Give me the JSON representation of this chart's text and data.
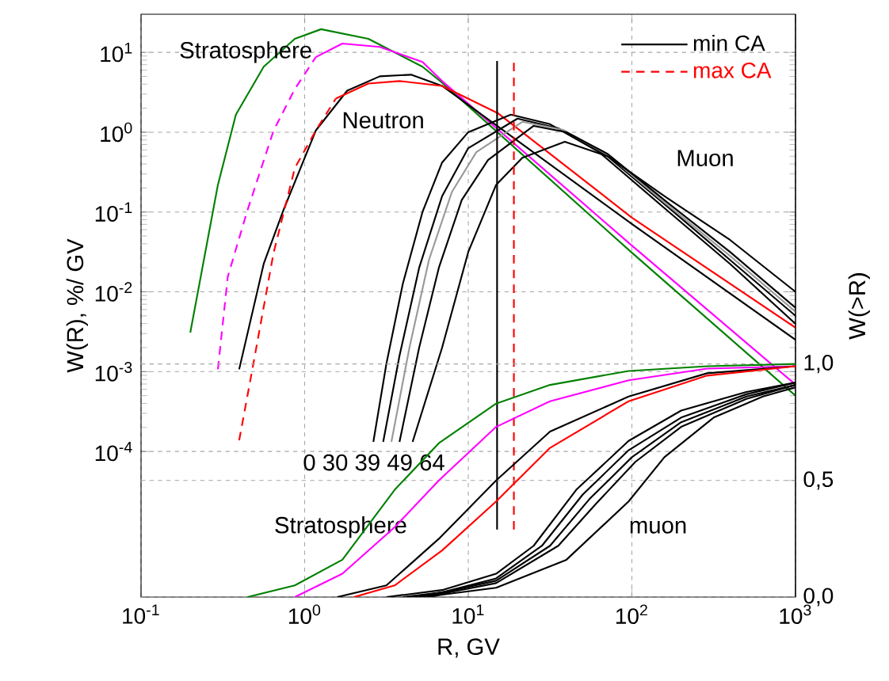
{
  "chart_data": {
    "type": "line",
    "xlabel": "R, GV",
    "ylabel": "W(R), %/ GV",
    "y2label": "W(>R)",
    "log": "xy",
    "xlim": [
      0.1,
      1000
    ],
    "ylim": [
      1.5e-06,
      30
    ],
    "y2lim": [
      0,
      2.5
    ],
    "xticks": [
      {
        "value": 0.1,
        "label": "10$^{-1}$"
      },
      {
        "value": 1,
        "label": "10$^{0}$"
      },
      {
        "value": 10,
        "label": "10$^{1}$"
      },
      {
        "value": 100,
        "label": "10$^{2}$"
      },
      {
        "value": 1000,
        "label": "10$^{3}$"
      }
    ],
    "yticks": [
      {
        "value": 0.0001,
        "label": "10$^{-4}$"
      },
      {
        "value": 0.001,
        "label": "10$^{-3}$"
      },
      {
        "value": 0.01,
        "label": "10$^{-2}$"
      },
      {
        "value": 0.1,
        "label": "10$^{-1}$"
      },
      {
        "value": 1,
        "label": "10$^{0}$"
      },
      {
        "value": 10,
        "label": "10$^{1}$"
      }
    ],
    "y2ticks": [
      {
        "value": 0,
        "label": "0,0"
      },
      {
        "value": 0.5,
        "label": "0,5"
      },
      {
        "value": 1,
        "label": "1,0"
      }
    ],
    "grid": true,
    "legend": "top right",
    "series": [
      {
        "color": "#008000",
        "line_style": "solid",
        "x": [
          0.2,
          0.295,
          0.38,
          0.562,
          0.871,
          1.26,
          2.45,
          5.25,
          6.92,
          100,
          1000
        ],
        "values": [
          0.00309,
          0.219,
          1.66,
          6.61,
          14.8,
          19.5,
          14.8,
          6.61,
          4.17,
          0.0309,
          0.0005
        ]
      },
      {
        "color": "#ff00ff",
        "line_style": "dashed",
        "x": [
          0.295,
          0.339,
          0.447,
          0.646,
          0.871,
          1.17
        ],
        "values": [
          0.00107,
          0.0155,
          0.105,
          1.05,
          3.47,
          8.71
        ]
      },
      {
        "color": "#ff00ff",
        "line_style": "solid",
        "x": [
          1.17,
          1.7,
          2.88,
          5.25,
          6.92,
          100,
          1000
        ],
        "values": [
          8.71,
          12.9,
          11.7,
          7.59,
          4.37,
          0.038,
          0.00069
        ]
      },
      {
        "name": "min CA",
        "color": "#000000",
        "line_style": "solid",
        "x": [
          0.398,
          0.562,
          0.741,
          1.17,
          1.82,
          2.88,
          4.47,
          6.92,
          100,
          1000
        ],
        "values": [
          0.00107,
          0.0224,
          0.105,
          1.05,
          3.31,
          5.01,
          5.25,
          3.8,
          0.0708,
          0.00251
        ]
      },
      {
        "name": "max CA",
        "color": "#ff0000",
        "line_style": "dashed",
        "x": [
          0.398,
          0.479,
          0.646,
          0.871,
          1.17,
          1.55
        ],
        "values": [
          0.000138,
          0.00107,
          0.0309,
          0.355,
          1.05,
          2.63
        ]
      },
      {
        "color": "#ff0000",
        "line_style": "solid",
        "x": [
          1.55,
          2.45,
          3.8,
          6.92,
          15.1,
          100,
          1000
        ],
        "values": [
          2.63,
          4.07,
          4.37,
          3.8,
          1.74,
          0.0851,
          0.00355
        ]
      },
      {
        "color": "#000000",
        "line_style": "solid",
        "x": [
          2.63,
          3.16,
          3.98,
          5.25,
          6.92,
          10,
          18.2,
          31.6,
          63.1,
          158,
          398,
          1000
        ],
        "values": [
          0.000132,
          0.00126,
          0.0126,
          0.1,
          0.417,
          1,
          1.66,
          1.26,
          0.562,
          0.112,
          0.0224,
          0.00398
        ]
      },
      {
        "color": "#000000",
        "line_style": "solid",
        "x": [
          3.02,
          3.8,
          5.01,
          6.92,
          10,
          20,
          35.5,
          70.8,
          158,
          398,
          1000
        ],
        "values": [
          0.000132,
          0.00158,
          0.02,
          0.158,
          0.631,
          1.48,
          1.12,
          0.501,
          0.126,
          0.0251,
          0.00501
        ]
      },
      {
        "color": "#999999",
        "line_style": "solid",
        "x": [
          3.39,
          4.37,
          5.75,
          7.94,
          11.2,
          21.4,
          38,
          70.8,
          158,
          398,
          1000
        ],
        "values": [
          0.000132,
          0.002,
          0.0251,
          0.178,
          0.562,
          1.35,
          1.07,
          0.525,
          0.132,
          0.0282,
          0.00562
        ]
      },
      {
        "color": "#000000",
        "line_style": "solid",
        "x": [
          3.8,
          5.01,
          6.61,
          9.12,
          13.2,
          25.1,
          39.8,
          70.8,
          158,
          398,
          1000
        ],
        "values": [
          0.000132,
          0.002,
          0.02,
          0.141,
          0.447,
          1.2,
          1,
          0.537,
          0.141,
          0.0316,
          0.00631
        ]
      },
      {
        "color": "#000000",
        "line_style": "solid",
        "x": [
          4.57,
          6.92,
          10,
          14.8,
          21.4,
          38.9,
          70.8,
          158,
          398,
          1000
        ],
        "values": [
          0.000132,
          0.002,
          0.0316,
          0.219,
          0.479,
          0.759,
          0.501,
          0.158,
          0.0447,
          0.01
        ]
      },
      {
        "axis": "y2",
        "color": "#008000",
        "line_style": "solid",
        "x": [
          0.447,
          0.871,
          1.7,
          3.55,
          6.61,
          14.8,
          31.6,
          95.5,
          288,
          1000
        ],
        "values": [
          0,
          0.05,
          0.16,
          0.46,
          0.66,
          0.83,
          0.91,
          0.97,
          0.99,
          1.0
        ]
      },
      {
        "axis": "y2",
        "color": "#ff00ff",
        "line_style": "solid",
        "x": [
          0.871,
          1.7,
          3.55,
          6.61,
          14.8,
          31.6,
          95.5,
          288,
          1000
        ],
        "values": [
          0,
          0.1,
          0.3,
          0.5,
          0.73,
          0.84,
          0.93,
          0.98,
          0.99
        ]
      },
      {
        "axis": "y2",
        "color": "#000000",
        "line_style": "solid",
        "x": [
          1.58,
          3.16,
          6.61,
          14.8,
          31.6,
          95.5,
          288,
          1000
        ],
        "values": [
          0,
          0.05,
          0.25,
          0.5,
          0.71,
          0.86,
          0.96,
          0.99
        ]
      },
      {
        "axis": "y2",
        "color": "#ff0000",
        "line_style": "solid",
        "x": [
          2,
          3.55,
          6.92,
          14.8,
          31.6,
          95.5,
          288,
          1000
        ],
        "values": [
          0,
          0.05,
          0.2,
          0.41,
          0.64,
          0.84,
          0.95,
          0.99
        ]
      },
      {
        "axis": "y2",
        "color": "#000000",
        "line_style": "solid",
        "x": [
          3.16,
          6.92,
          14.8,
          25.1,
          45.7,
          95.5,
          200,
          501,
          1000
        ],
        "values": [
          0,
          0.03,
          0.1,
          0.22,
          0.46,
          0.67,
          0.8,
          0.88,
          0.92
        ]
      },
      {
        "axis": "y2",
        "color": "#000000",
        "line_style": "solid",
        "x": [
          3.98,
          6.92,
          14.8,
          28.2,
          50.1,
          95.5,
          200,
          501,
          1000
        ],
        "values": [
          0,
          0.02,
          0.08,
          0.22,
          0.44,
          0.63,
          0.77,
          0.87,
          0.92
        ]
      },
      {
        "axis": "y2",
        "color": "#000000",
        "line_style": "solid",
        "x": [
          4.47,
          6.92,
          14.8,
          31.6,
          55,
          100,
          200,
          501,
          1000
        ],
        "values": [
          0,
          0.02,
          0.07,
          0.22,
          0.42,
          0.6,
          0.75,
          0.86,
          0.91
        ]
      },
      {
        "axis": "y2",
        "color": "#000000",
        "line_style": "solid",
        "x": [
          5.01,
          6.92,
          14.8,
          35.5,
          60.3,
          105,
          200,
          501,
          1000
        ],
        "values": [
          0,
          0.015,
          0.06,
          0.22,
          0.4,
          0.58,
          0.73,
          0.85,
          0.91
        ]
      },
      {
        "axis": "y2",
        "color": "#000000",
        "line_style": "solid",
        "x": [
          5.62,
          6.92,
          14.8,
          39.8,
          95.5,
          158,
          316,
          631,
          1000
        ],
        "values": [
          0,
          0.01,
          0.04,
          0.16,
          0.41,
          0.6,
          0.77,
          0.86,
          0.9
        ]
      }
    ],
    "ref_lines": [
      {
        "axis": "x",
        "value": 15,
        "color": "#000000",
        "line_style": "solid"
      },
      {
        "axis": "x",
        "value": 19,
        "color": "#ff0000",
        "line_style": "dashed"
      }
    ],
    "annotations": [
      "Stratosphere",
      "Neutron",
      "Muon",
      "0 30 39 49 64",
      "Stratosphere",
      "muon"
    ]
  }
}
